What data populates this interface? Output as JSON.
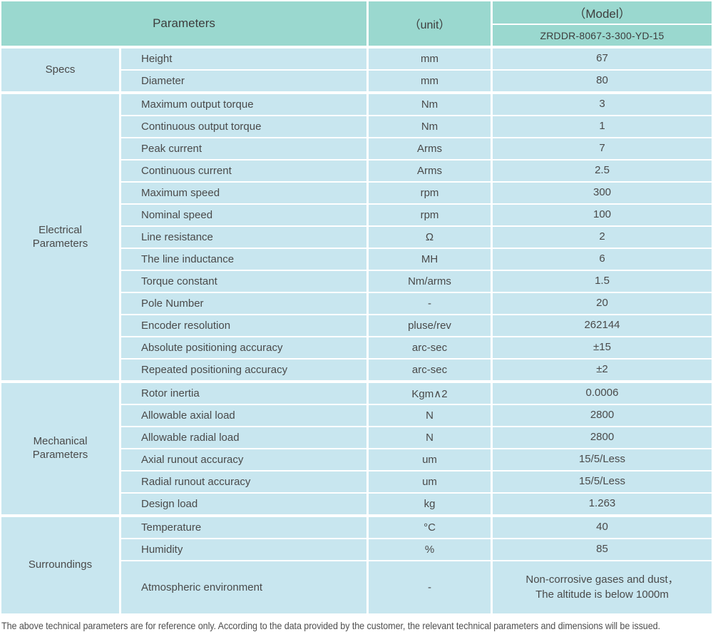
{
  "header": {
    "parameters_label": "Parameters",
    "unit_label": "（unit）",
    "model_label": "（Model）",
    "model_code": "ZRDDR-8067-3-300-YD-15"
  },
  "colors": {
    "header_teal": "#9ad8cf",
    "cell_blue": "#c8e6ef",
    "text_gray": "#4a4a4a",
    "divider_white": "#ffffff"
  },
  "sections": [
    {
      "category": "Specs",
      "rows": [
        {
          "name": "Height",
          "unit": "mm",
          "value": "67"
        },
        {
          "name": "Diameter",
          "unit": "mm",
          "value": "80"
        }
      ]
    },
    {
      "category": "Electrical\nParameters",
      "rows": [
        {
          "name": "Maximum output torque",
          "unit": "Nm",
          "value": "3"
        },
        {
          "name": "Continuous output torque",
          "unit": "Nm",
          "value": "1"
        },
        {
          "name": "Peak current",
          "unit": "Arms",
          "value": "7"
        },
        {
          "name": "Continuous current",
          "unit": "Arms",
          "value": "2.5"
        },
        {
          "name": "Maximum speed",
          "unit": "rpm",
          "value": "300"
        },
        {
          "name": "Nominal speed",
          "unit": "rpm",
          "value": "100"
        },
        {
          "name": "Line resistance",
          "unit": "Ω",
          "value": "2"
        },
        {
          "name": "The line inductance",
          "unit": "MH",
          "value": "6"
        },
        {
          "name": "Torque constant",
          "unit": "Nm/arms",
          "value": "1.5"
        },
        {
          "name": "Pole Number",
          "unit": "-",
          "value": "20"
        },
        {
          "name": "Encoder resolution",
          "unit": "pluse/rev",
          "value": "262144"
        },
        {
          "name": "Absolute positioning accuracy",
          "unit": "arc-sec",
          "value": "±15"
        },
        {
          "name": "Repeated positioning accuracy",
          "unit": "arc-sec",
          "value": "±2"
        }
      ]
    },
    {
      "category": "Mechanical\nParameters",
      "rows": [
        {
          "name": "Rotor inertia",
          "unit": "Kgm∧2",
          "value": "0.0006"
        },
        {
          "name": "Allowable axial load",
          "unit": "N",
          "value": "2800"
        },
        {
          "name": "Allowable radial load",
          "unit": "N",
          "value": "2800"
        },
        {
          "name": "Axial runout accuracy",
          "unit": "um",
          "value": "15/5/Less"
        },
        {
          "name": "Radial runout accuracy",
          "unit": "um",
          "value": "15/5/Less"
        },
        {
          "name": "Design load",
          "unit": "kg",
          "value": "1.263"
        }
      ]
    },
    {
      "category": "Surroundings",
      "rows": [
        {
          "name": "Temperature",
          "unit": "°C",
          "value": "40"
        },
        {
          "name": "Humidity",
          "unit": "%",
          "value": "85"
        },
        {
          "name": "Atmospheric environment",
          "unit": "-",
          "value": "Non-corrosive gases and dust，\nThe altitude is below 1000m",
          "tall": true
        }
      ]
    }
  ],
  "footer": {
    "note": "The above technical parameters are for reference only. According to the data provided by the customer, the relevant technical parameters and dimensions will be issued."
  }
}
